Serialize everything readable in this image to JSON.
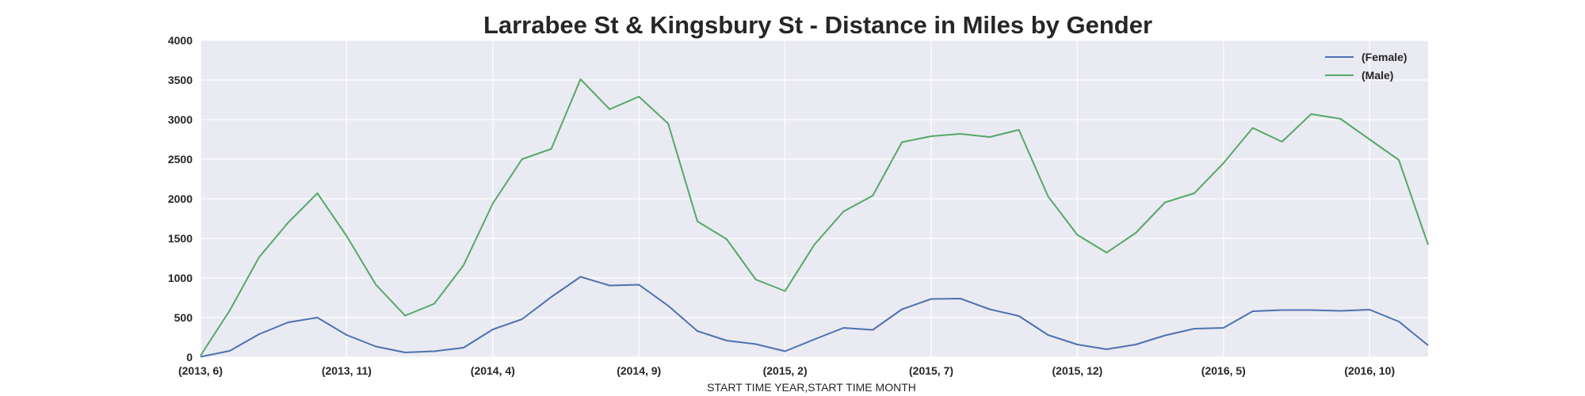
{
  "chart_data": {
    "type": "line",
    "title": "Larrabee St & Kingsbury St - Distance in Miles by Gender",
    "xlabel": "START TIME YEAR,START TIME MONTH",
    "ylabel": "",
    "ylim": [
      0,
      4000
    ],
    "yticks": [
      "0",
      "500",
      "1000",
      "1500",
      "2000",
      "2500",
      "3000",
      "3500",
      "4000"
    ],
    "xtick_labels": [
      "(2013, 6)",
      "(2013, 11)",
      "(2014, 4)",
      "(2014, 9)",
      "(2015, 2)",
      "(2015, 7)",
      "(2015, 12)",
      "(2016, 5)",
      "(2016, 10)"
    ],
    "x": [
      "(2013, 6)",
      "(2013, 7)",
      "(2013, 8)",
      "(2013, 9)",
      "(2013, 10)",
      "(2013, 11)",
      "(2013, 12)",
      "(2014, 1)",
      "(2014, 2)",
      "(2014, 3)",
      "(2014, 4)",
      "(2014, 5)",
      "(2014, 6)",
      "(2014, 7)",
      "(2014, 8)",
      "(2014, 9)",
      "(2014, 10)",
      "(2014, 11)",
      "(2014, 12)",
      "(2015, 1)",
      "(2015, 2)",
      "(2015, 3)",
      "(2015, 4)",
      "(2015, 5)",
      "(2015, 6)",
      "(2015, 7)",
      "(2015, 8)",
      "(2015, 9)",
      "(2015, 10)",
      "(2015, 11)",
      "(2015, 12)",
      "(2016, 1)",
      "(2016, 2)",
      "(2016, 3)",
      "(2016, 4)",
      "(2016, 5)",
      "(2016, 6)",
      "(2016, 7)",
      "(2016, 8)",
      "(2016, 9)",
      "(2016, 10)",
      "(2016, 11)",
      "(2016, 12)"
    ],
    "grid": true,
    "legend_position": "top-right",
    "series": [
      {
        "name": "(Female)",
        "color": "#4c72b0",
        "values": [
          5,
          80,
          290,
          440,
          500,
          280,
          135,
          60,
          75,
          120,
          350,
          480,
          760,
          1015,
          905,
          915,
          650,
          330,
          210,
          165,
          75,
          225,
          370,
          345,
          605,
          735,
          740,
          605,
          520,
          280,
          160,
          100,
          160,
          275,
          360,
          370,
          580,
          595,
          595,
          585,
          600,
          450,
          150
        ]
      },
      {
        "name": "(Male)",
        "color": "#55a868",
        "values": [
          20,
          590,
          1260,
          1700,
          2070,
          1530,
          915,
          525,
          675,
          1160,
          1940,
          2500,
          2630,
          3510,
          3130,
          3290,
          2950,
          1715,
          1490,
          980,
          835,
          1420,
          1840,
          2040,
          2715,
          2790,
          2820,
          2780,
          2870,
          2030,
          1545,
          1320,
          1570,
          1955,
          2070,
          2450,
          2895,
          2720,
          3070,
          3010,
          2750,
          2490,
          1420
        ]
      }
    ]
  }
}
